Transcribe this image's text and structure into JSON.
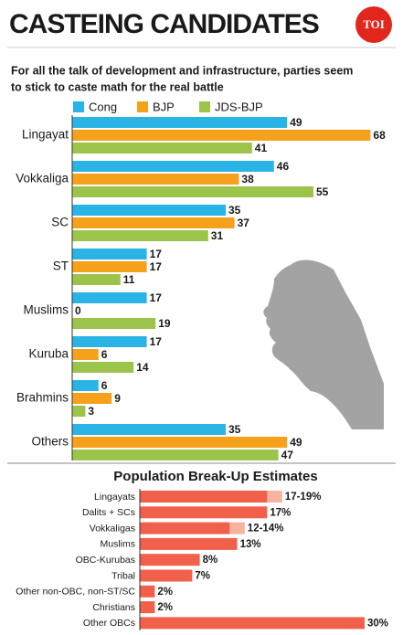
{
  "header": {
    "title": "CASTEING CANDIDATES",
    "logo": "TOI",
    "subtitle": [
      "For all the talk of development and infrastructure, parties seem",
      "to stick to caste math for the real battle"
    ]
  },
  "chart_data": [
    {
      "type": "bar",
      "orientation": "horizontal",
      "categories": [
        "Lingayat",
        "Vokkaliga",
        "SC",
        "ST",
        "Muslims",
        "Kuruba",
        "Brahmins",
        "Others"
      ],
      "series": [
        {
          "name": "Cong",
          "color": "#2ab4e6",
          "values": [
            49,
            46,
            35,
            17,
            17,
            17,
            6,
            35
          ]
        },
        {
          "name": "BJP",
          "color": "#f5a11c",
          "values": [
            68,
            38,
            37,
            17,
            0,
            6,
            9,
            49
          ]
        },
        {
          "name": "JDS-BJP",
          "color": "#9cc44b",
          "values": [
            41,
            55,
            31,
            11,
            19,
            14,
            3,
            47
          ]
        }
      ]
    },
    {
      "type": "range-bar",
      "orientation": "horizontal",
      "title": "Population Break-Up Estimates",
      "categories": [
        "Lingayats",
        "Dalits + SCs",
        "Vokkaligas",
        "Muslims",
        "OBC-Kurubas",
        "Tribal",
        "Other non-OBC, non-ST/SC",
        "Christians",
        "Other OBCs"
      ],
      "color": "#f0604a",
      "range_color": "#f6b3a2",
      "values": [
        17,
        17,
        12,
        13,
        8,
        7,
        2,
        2,
        30
      ],
      "high": [
        19,
        null,
        14,
        null,
        null,
        null,
        null,
        null,
        null
      ],
      "value_labels": [
        "17-19%",
        "17%",
        "12-14%",
        "13%",
        "8%",
        "7%",
        "2%",
        "2%",
        "30%"
      ]
    }
  ]
}
